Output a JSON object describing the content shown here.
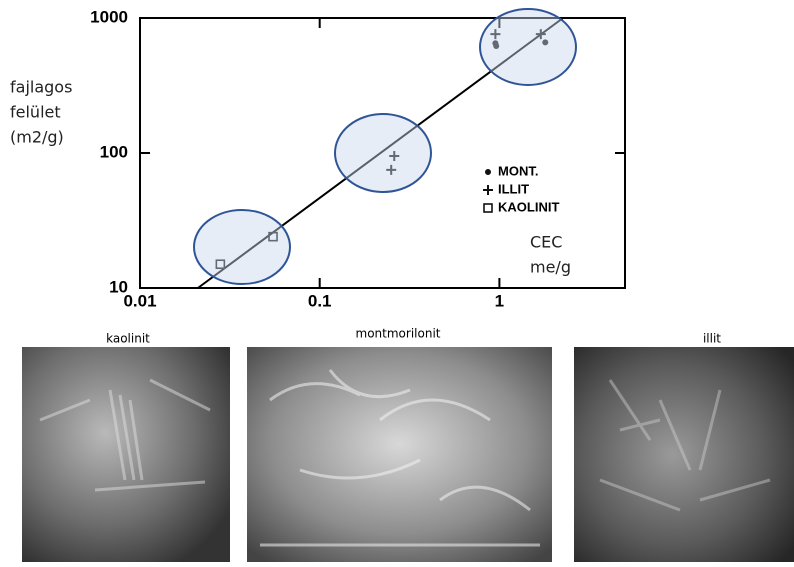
{
  "chart_data": {
    "type": "scatter",
    "y_label_lines": [
      "fajlagos",
      "felület",
      "(m2/g)"
    ],
    "x_label_lines": [
      "CEC",
      "me/g"
    ],
    "log_x": true,
    "log_y": true,
    "xlim": [
      0.01,
      5
    ],
    "ylim": [
      10,
      1000
    ],
    "xticks": [
      0.01,
      0.1,
      1
    ],
    "yticks": [
      10,
      100,
      1000
    ],
    "series": [
      {
        "name": "MONT.",
        "marker": "dot",
        "color": "#111111",
        "x": [
          0.95,
          0.96,
          1.8
        ],
        "values": [
          650,
          620,
          660
        ]
      },
      {
        "name": "ILLIT",
        "marker": "plus",
        "color": "#111111",
        "x": [
          0.26,
          0.25,
          1.7,
          0.95
        ],
        "values": [
          95,
          75,
          760,
          760
        ]
      },
      {
        "name": "KAOLINIT",
        "marker": "square",
        "color": "#111111",
        "x": [
          0.028,
          0.055
        ],
        "values": [
          15,
          24
        ]
      }
    ],
    "fit_line": {
      "x": [
        0.021,
        2.26
      ],
      "y": [
        10,
        1000
      ]
    }
  },
  "photos": [
    {
      "caption": "kaolinit"
    },
    {
      "caption": "montmorilonit"
    },
    {
      "caption": "illit"
    }
  ]
}
